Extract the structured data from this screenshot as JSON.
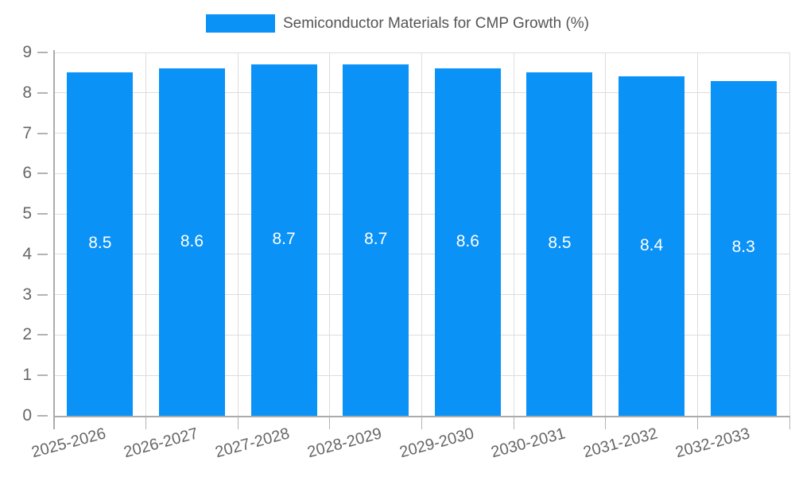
{
  "legend": {
    "label": "Semiconductor Materials for CMP Growth (%)"
  },
  "chart_data": {
    "type": "bar",
    "title": "Semiconductor Materials for CMP Growth (%)",
    "categories": [
      "2025-2026",
      "2026-2027",
      "2027-2028",
      "2028-2029",
      "2029-2030",
      "2030-2031",
      "2031-2032",
      "2032-2033"
    ],
    "values": [
      8.5,
      8.6,
      8.7,
      8.7,
      8.6,
      8.5,
      8.4,
      8.3
    ],
    "value_labels": [
      "8.5",
      "8.6",
      "8.7",
      "8.7",
      "8.6",
      "8.5",
      "8.4",
      "8.3"
    ],
    "xlabel": "",
    "ylabel": "",
    "ylim": [
      0,
      9
    ],
    "yticks": [
      0,
      1,
      2,
      3,
      4,
      5,
      6,
      7,
      8,
      9
    ],
    "grid": true,
    "legend_position": "top",
    "colors": {
      "bar": "#0A92F7",
      "bar_value_label": "#ffffff",
      "grid": "#dddddd",
      "axis": "#ababab",
      "tick_text": "#666666",
      "title_text": "#555555"
    }
  }
}
